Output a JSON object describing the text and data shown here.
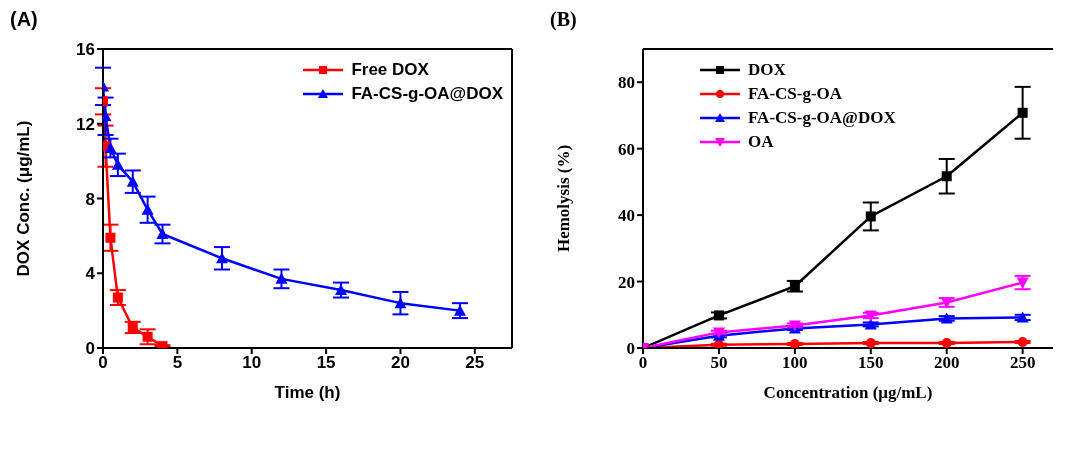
{
  "chart_data": [
    {
      "type": "line",
      "title": "(A)",
      "xlabel": "Time (h)",
      "ylabel": "DOX Conc. (μg/mL)",
      "xlim": [
        0,
        27.5
      ],
      "xticks": [
        0,
        5,
        10,
        15,
        20,
        25
      ],
      "ylim": [
        0,
        16
      ],
      "yticks": [
        0,
        4,
        8,
        12,
        16
      ],
      "legend": "top right",
      "series": [
        {
          "name": "Free DOX",
          "color": "#ff0000",
          "marker": "square",
          "x": [
            0,
            0.17,
            0.5,
            1,
            2,
            3,
            4
          ],
          "values": [
            13.2,
            10.8,
            5.9,
            2.7,
            1.1,
            0.6,
            0.1
          ],
          "errors": [
            0.7,
            1.1,
            0.7,
            0.4,
            0.3,
            0.4,
            0.05
          ]
        },
        {
          "name": "FA-CS-g-OA@DOX",
          "color": "#0000ff",
          "marker": "triangle",
          "x": [
            0,
            0.17,
            0.5,
            1,
            2,
            3,
            4,
            8,
            12,
            16,
            20,
            24
          ],
          "values": [
            14.0,
            12.4,
            10.7,
            9.8,
            8.9,
            7.4,
            6.1,
            4.8,
            3.7,
            3.1,
            2.4,
            2.0
          ],
          "errors": [
            1.0,
            1.0,
            0.5,
            0.6,
            0.6,
            0.7,
            0.5,
            0.6,
            0.5,
            0.4,
            0.6,
            0.4
          ]
        }
      ]
    },
    {
      "type": "line",
      "title": "(B)",
      "xlabel": "Concentration (μg/mL)",
      "ylabel": "Hemolysis (%)",
      "xlim": [
        0,
        270
      ],
      "xticks": [
        0,
        50,
        100,
        150,
        200,
        250
      ],
      "ylim": [
        0,
        90
      ],
      "yticks": [
        0,
        20,
        40,
        60,
        80
      ],
      "legend": "top left",
      "x": [
        0,
        50,
        100,
        150,
        200,
        250
      ],
      "series": [
        {
          "name": "DOX",
          "color": "#000000",
          "marker": "square",
          "values": [
            0,
            9.8,
            18.6,
            39.6,
            51.7,
            70.8
          ],
          "errors": [
            null,
            0.9,
            1.6,
            4.2,
            5.2,
            7.8
          ]
        },
        {
          "name": "FA-CS-g-OA",
          "color": "#ff0000",
          "marker": "circle",
          "values": [
            0,
            1.0,
            1.2,
            1.5,
            1.5,
            1.8
          ],
          "errors": [
            null,
            0.3,
            0.3,
            0.3,
            0.3,
            0.3
          ]
        },
        {
          "name": "FA-CS-g-OA@DOX",
          "color": "#0000ff",
          "marker": "triangle",
          "values": [
            0,
            3.7,
            5.9,
            7.1,
            8.9,
            9.2
          ],
          "errors": [
            null,
            0.5,
            0.5,
            0.6,
            0.7,
            0.8
          ]
        },
        {
          "name": "OA",
          "color": "#ff00ff",
          "marker": "triangle-down",
          "values": [
            0,
            4.7,
            6.8,
            9.8,
            13.7,
            19.7
          ],
          "errors": [
            null,
            0.5,
            0.6,
            0.8,
            1.3,
            2.0
          ]
        }
      ]
    }
  ]
}
